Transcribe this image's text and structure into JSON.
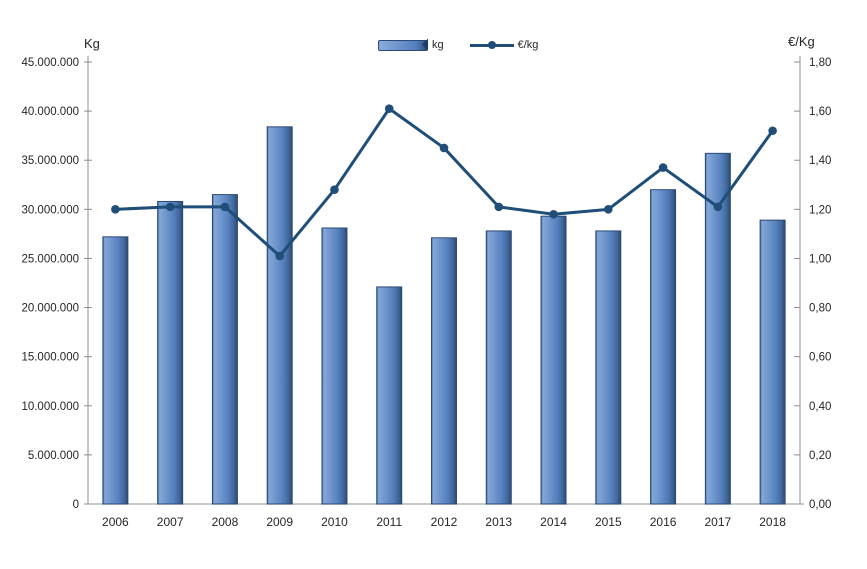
{
  "chart_data": {
    "type": "combo",
    "title": "",
    "categories": [
      "2006",
      "2007",
      "2008",
      "2009",
      "2010",
      "2011",
      "2012",
      "2013",
      "2014",
      "2015",
      "2016",
      "2017",
      "2018"
    ],
    "series": [
      {
        "name": "kg",
        "type": "bar",
        "axis": "left",
        "color": "#5b84c4",
        "border_color": "#2b4a76",
        "values": [
          27200000,
          30800000,
          31500000,
          38400000,
          28100000,
          22100000,
          27100000,
          27800000,
          29300000,
          27800000,
          32000000,
          35700000,
          28900000
        ]
      },
      {
        "name": "€/kg",
        "type": "line",
        "axis": "right",
        "color": "#1f4e79",
        "values": [
          1.2,
          1.21,
          1.21,
          1.01,
          1.28,
          1.61,
          1.45,
          1.21,
          1.18,
          1.2,
          1.37,
          1.21,
          1.52
        ]
      }
    ],
    "left_axis": {
      "title": "Kg",
      "min": 0,
      "max": 45000000,
      "step": 5000000,
      "tick_labels": [
        "45.000.000",
        "40.000.000",
        "35.000.000",
        "30.000.000",
        "25.000.000",
        "20.000.000",
        "15.000.000",
        "10.000.000",
        "5.000.000",
        "0"
      ]
    },
    "right_axis": {
      "title": "€/Kg",
      "min": 0,
      "max": 1.8,
      "step": 0.2,
      "tick_labels": [
        "1,80",
        "1,60",
        "1,40",
        "1,20",
        "1,00",
        "0,80",
        "0,60",
        "0,40",
        "0,20",
        "0,00"
      ]
    },
    "legend_position": "top",
    "grid": false,
    "axis_color": "#8c8c8c",
    "text_color": "#262626"
  }
}
